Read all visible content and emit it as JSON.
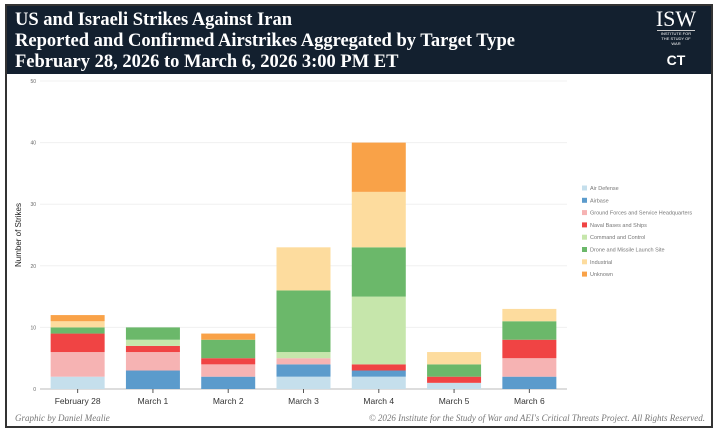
{
  "header": {
    "line1": "US and Israeli Strikes Against Iran",
    "line2": "Reported and Confirmed Airstrikes Aggregated by Target Type",
    "line3": "February 28, 2026 to March 6, 2026 3:00 PM ET"
  },
  "logo": {
    "isw": "ISW",
    "isw_sub": "INSTITUTE FOR THE STUDY OF WAR",
    "ct": "CT",
    "ct_sub": "CRITICAL THREATS",
    "fund": "THE DR. JACK LONDON GEOSPATIAL FUND"
  },
  "footer": {
    "credit": "Graphic by Daniel Mealie",
    "copyright": "© 2026 Institute for the Study of War and AEI's Critical Threats Project. All Rights Reserved."
  },
  "chart_data": {
    "type": "bar",
    "stacked": true,
    "categories": [
      "February 28",
      "March 1",
      "March 2",
      "March 3",
      "March 4",
      "March 5",
      "March 6"
    ],
    "ylabel": "Number of Strikes",
    "ylim": [
      0,
      50
    ],
    "yticks": [
      0,
      10,
      20,
      30,
      40,
      50
    ],
    "legend": "right",
    "grid": true,
    "series": [
      {
        "name": "Air Defense",
        "color": "#c5dfec",
        "values": [
          2,
          0,
          0,
          2,
          2,
          1,
          0
        ]
      },
      {
        "name": "Airbase",
        "color": "#5b9bcc",
        "values": [
          0,
          3,
          2,
          2,
          1,
          0,
          2
        ]
      },
      {
        "name": "Ground Forces and Service Headquarters",
        "color": "#f6b3b3",
        "values": [
          4,
          3,
          2,
          1,
          0,
          0,
          3
        ]
      },
      {
        "name": "Naval Bases and Ships",
        "color": "#f04444",
        "values": [
          3,
          1,
          1,
          0,
          1,
          1,
          3
        ]
      },
      {
        "name": "Command and Control",
        "color": "#c6e6ab",
        "values": [
          0,
          1,
          0,
          1,
          11,
          0,
          0
        ]
      },
      {
        "name": "Drone and Missile Launch Site",
        "color": "#6bb86a",
        "values": [
          1,
          2,
          3,
          10,
          8,
          2,
          3
        ]
      },
      {
        "name": "Industrial",
        "color": "#fddc9e",
        "values": [
          1,
          0,
          0,
          7,
          9,
          2,
          2
        ]
      },
      {
        "name": "Unknown",
        "color": "#f9a248",
        "values": [
          1,
          0,
          1,
          0,
          8,
          0,
          0
        ]
      }
    ]
  }
}
